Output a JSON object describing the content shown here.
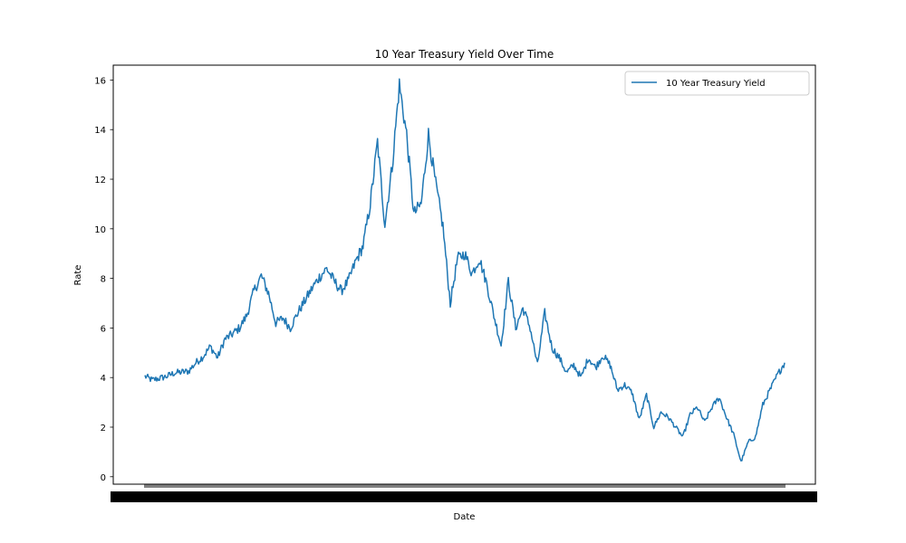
{
  "chart_data": {
    "type": "line",
    "title": "10 Year Treasury Yield Over Time",
    "xlabel": "Date",
    "ylabel": "Rate",
    "ylim": [
      -0.3,
      16.6
    ],
    "yticks": [
      0,
      2,
      4,
      6,
      8,
      10,
      12,
      14,
      16
    ],
    "grid": false,
    "legend_position": "top-right",
    "line_color": "#1f77b4",
    "series": [
      {
        "name": "10 Year Treasury Yield",
        "values": [
          4.05,
          3.9,
          3.97,
          4.05,
          4.18,
          4.22,
          4.25,
          4.6,
          4.85,
          5.25,
          4.8,
          5.55,
          5.75,
          6.0,
          6.5,
          7.5,
          8.1,
          7.4,
          6.2,
          6.4,
          6.0,
          6.6,
          7.1,
          7.6,
          8.05,
          8.4,
          7.9,
          7.5,
          7.9,
          8.7,
          9.3,
          11.0,
          13.5,
          10.2,
          12.5,
          15.8,
          13.8,
          10.6,
          11.0,
          13.8,
          11.8,
          10.1,
          7.0,
          8.8,
          9.0,
          8.2,
          8.8,
          7.8,
          6.5,
          5.3,
          7.9,
          6.0,
          6.8,
          6.0,
          4.5,
          6.6,
          5.2,
          4.8,
          4.2,
          4.5,
          4.0,
          4.8,
          4.4,
          4.9,
          4.5,
          3.5,
          3.7,
          3.4,
          2.3,
          3.3,
          2.0,
          2.6,
          2.4,
          2.0,
          1.6,
          2.5,
          2.8,
          2.2,
          2.8,
          3.2,
          2.4,
          1.7,
          0.6,
          1.4,
          1.6,
          2.9,
          3.5,
          4.1,
          4.6
        ]
      }
    ]
  }
}
